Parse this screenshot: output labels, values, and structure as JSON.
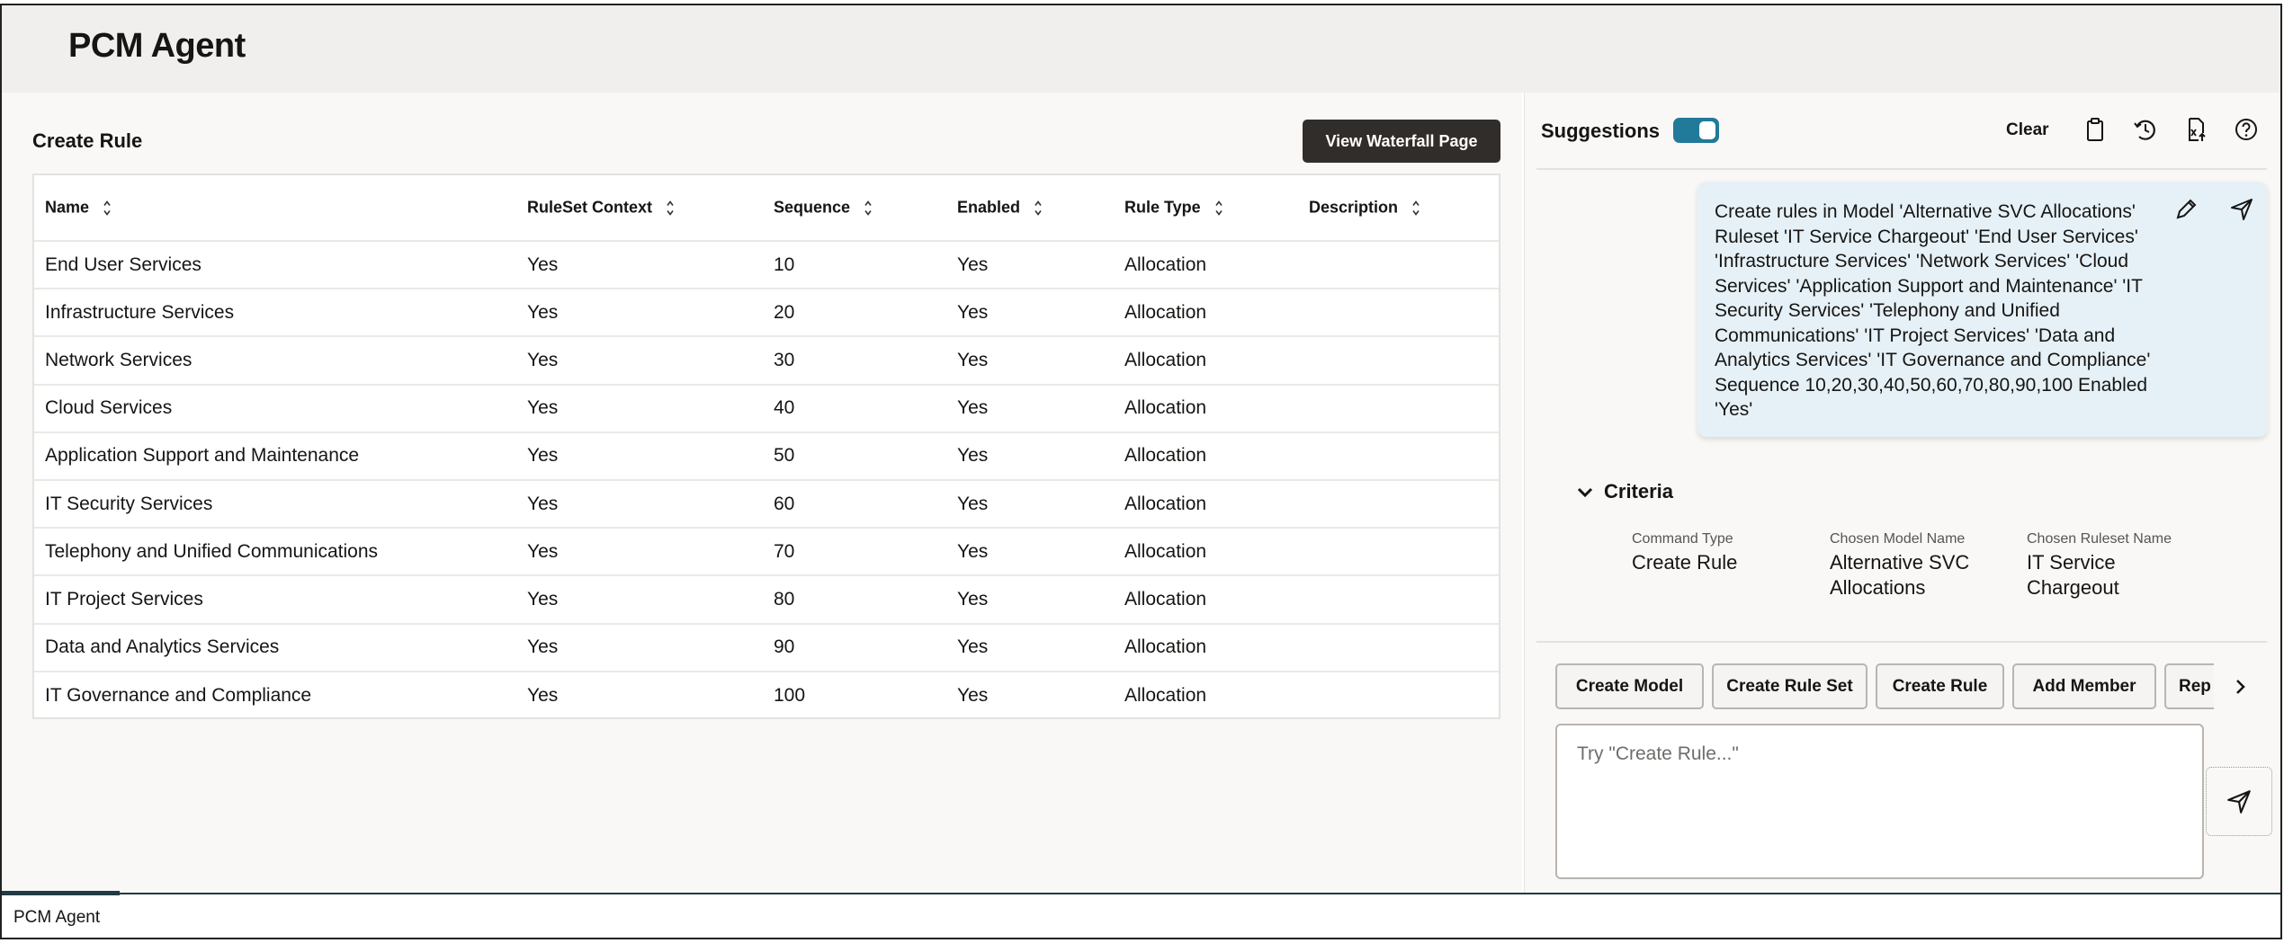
{
  "app": {
    "title": "PCM Agent",
    "footer_tab": "PCM Agent"
  },
  "main": {
    "section_title": "Create Rule",
    "waterfall_button": "View Waterfall Page",
    "table": {
      "columns": [
        "Name",
        "RuleSet Context",
        "Sequence",
        "Enabled",
        "Rule Type",
        "Description"
      ],
      "rows": [
        [
          "End User Services",
          "Yes",
          "10",
          "Yes",
          "Allocation",
          ""
        ],
        [
          "Infrastructure Services",
          "Yes",
          "20",
          "Yes",
          "Allocation",
          ""
        ],
        [
          "Network Services",
          "Yes",
          "30",
          "Yes",
          "Allocation",
          ""
        ],
        [
          "Cloud Services",
          "Yes",
          "40",
          "Yes",
          "Allocation",
          ""
        ],
        [
          "Application Support and Maintenance",
          "Yes",
          "50",
          "Yes",
          "Allocation",
          ""
        ],
        [
          "IT Security Services",
          "Yes",
          "60",
          "Yes",
          "Allocation",
          ""
        ],
        [
          "Telephony and Unified Communications",
          "Yes",
          "70",
          "Yes",
          "Allocation",
          ""
        ],
        [
          "IT Project Services",
          "Yes",
          "80",
          "Yes",
          "Allocation",
          ""
        ],
        [
          "Data and Analytics Services",
          "Yes",
          "90",
          "Yes",
          "Allocation",
          ""
        ],
        [
          "IT Governance and Compliance",
          "Yes",
          "100",
          "Yes",
          "Allocation",
          ""
        ]
      ]
    }
  },
  "assistant": {
    "suggestions_label": "Suggestions",
    "suggestions_on": true,
    "toggle_color": "#227a9a",
    "clear_label": "Clear",
    "toolbar_icons": [
      "clipboard-icon",
      "history-icon",
      "export-excel-icon",
      "help-icon"
    ],
    "message": "Create rules in Model 'Alternative SVC Allocations' Ruleset 'IT Service Chargeout' 'End User Services' 'Infrastructure Services' 'Network Services' 'Cloud Services' 'Application Support and Maintenance' 'IT Security Services' 'Telephony and Unified Communications' 'IT Project Services' 'Data and Analytics Services' 'IT Governance and Compliance' Sequence 10,20,30,40,50,60,70,80,90,100 Enabled 'Yes'",
    "criteria": {
      "title": "Criteria",
      "fields": [
        {
          "label": "Command Type",
          "value": "Create Rule"
        },
        {
          "label": "Chosen Model Name",
          "value": "Alternative SVC Allocations"
        },
        {
          "label": "Chosen Ruleset Name",
          "value": "IT Service Chargeout"
        }
      ]
    },
    "quick_actions": [
      "Create Model",
      "Create Rule Set",
      "Create Rule",
      "Add Member",
      "Rep"
    ],
    "input_placeholder": "Try \"Create Rule...\""
  }
}
